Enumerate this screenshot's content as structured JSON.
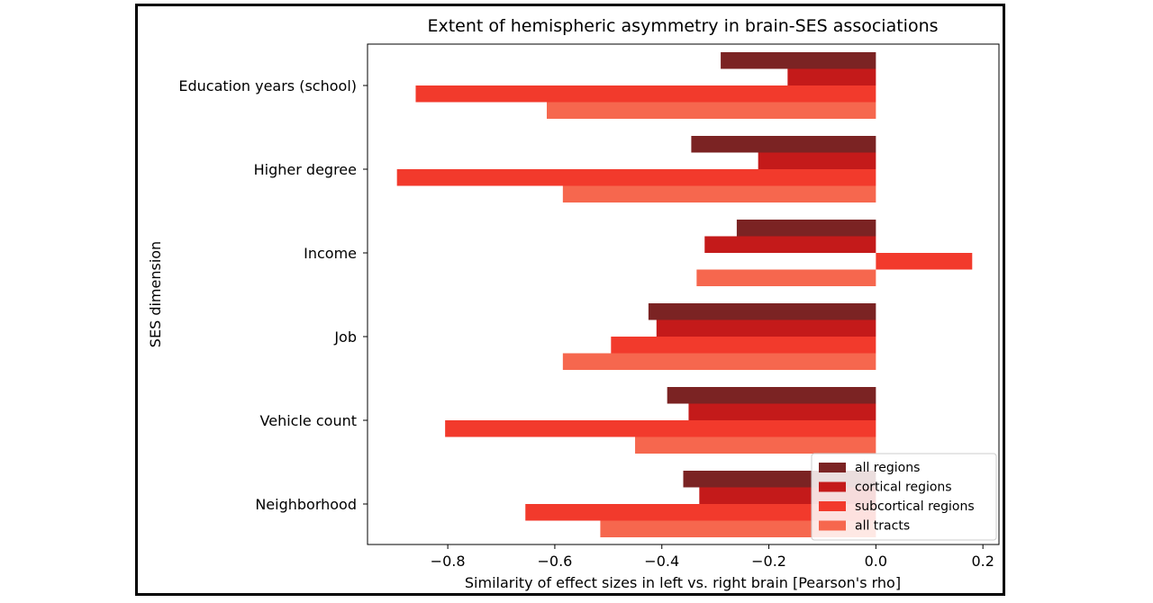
{
  "chart_data": {
    "type": "bar",
    "orientation": "horizontal",
    "title": "Extent of hemispheric asymmetry in brain-SES associations",
    "xlabel": "Similarity of effect sizes in left vs. right brain [Pearson's rho]",
    "ylabel": "SES dimension",
    "xlim": [
      -0.95,
      0.23
    ],
    "xticks": [
      -0.8,
      -0.6,
      -0.4,
      -0.2,
      0.0,
      0.2
    ],
    "xtick_labels": [
      "−0.8",
      "−0.6",
      "−0.4",
      "−0.2",
      "0.0",
      "0.2"
    ],
    "categories": [
      "Education years (school)",
      "Higher degree",
      "Income",
      "Job",
      "Vehicle count",
      "Neighborhood"
    ],
    "series": [
      {
        "name": "all regions",
        "color": "#7b2323",
        "values": [
          -0.29,
          -0.345,
          -0.26,
          -0.425,
          -0.39,
          -0.36
        ]
      },
      {
        "name": "cortical regions",
        "color": "#c41a1a",
        "values": [
          -0.165,
          -0.22,
          -0.32,
          -0.41,
          -0.35,
          -0.33
        ]
      },
      {
        "name": "subcortical regions",
        "color": "#f23a2c",
        "values": [
          -0.86,
          -0.895,
          0.18,
          -0.495,
          -0.805,
          -0.655
        ]
      },
      {
        "name": "all tracts",
        "color": "#f6674e",
        "values": [
          -0.615,
          -0.585,
          -0.335,
          -0.585,
          -0.45,
          -0.515
        ]
      }
    ],
    "legend_position": "bottom-right",
    "grid": false
  }
}
